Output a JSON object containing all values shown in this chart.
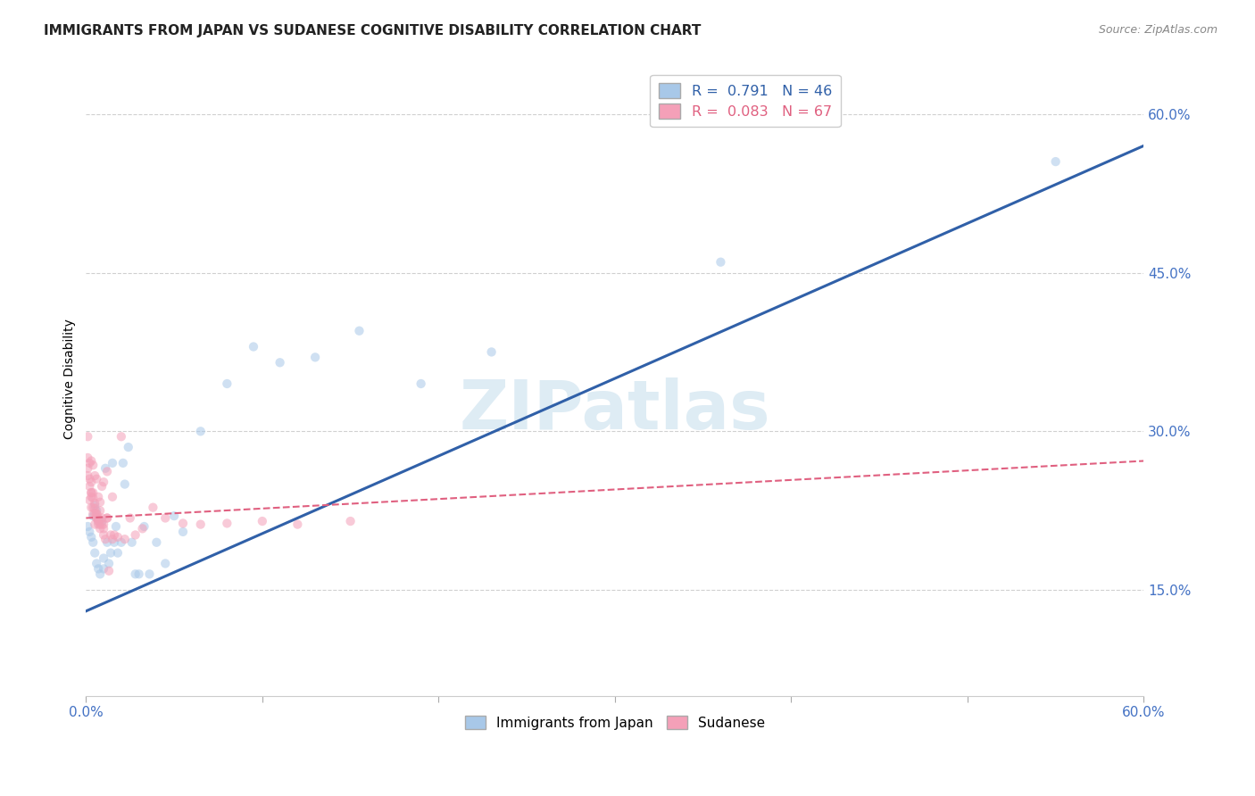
{
  "title": "IMMIGRANTS FROM JAPAN VS SUDANESE COGNITIVE DISABILITY CORRELATION CHART",
  "source": "Source: ZipAtlas.com",
  "ylabel": "Cognitive Disability",
  "xlim": [
    0.0,
    0.6
  ],
  "ylim": [
    0.05,
    0.65
  ],
  "xtick_positions": [
    0.0,
    0.6
  ],
  "xtick_labels": [
    "0.0%",
    "60.0%"
  ],
  "ytick_vals": [
    0.15,
    0.3,
    0.45,
    0.6
  ],
  "ytick_labels": [
    "15.0%",
    "30.0%",
    "45.0%",
    "60.0%"
  ],
  "watermark": "ZIPatlas",
  "color_japan": "#a8c8e8",
  "color_sudanese": "#f4a0b8",
  "color_japan_line": "#3060a8",
  "color_sudanese_line": "#e06080",
  "japan_scatter_x": [
    0.001,
    0.002,
    0.003,
    0.004,
    0.004,
    0.005,
    0.005,
    0.006,
    0.006,
    0.007,
    0.007,
    0.008,
    0.009,
    0.01,
    0.01,
    0.011,
    0.012,
    0.013,
    0.014,
    0.015,
    0.016,
    0.017,
    0.018,
    0.02,
    0.021,
    0.022,
    0.024,
    0.026,
    0.028,
    0.03,
    0.033,
    0.036,
    0.04,
    0.045,
    0.05,
    0.055,
    0.065,
    0.08,
    0.095,
    0.11,
    0.13,
    0.155,
    0.19,
    0.23,
    0.36,
    0.55
  ],
  "japan_scatter_y": [
    0.21,
    0.205,
    0.2,
    0.195,
    0.22,
    0.185,
    0.23,
    0.175,
    0.225,
    0.17,
    0.215,
    0.165,
    0.215,
    0.17,
    0.18,
    0.265,
    0.195,
    0.175,
    0.185,
    0.27,
    0.195,
    0.21,
    0.185,
    0.195,
    0.27,
    0.25,
    0.285,
    0.195,
    0.165,
    0.165,
    0.21,
    0.165,
    0.195,
    0.175,
    0.22,
    0.205,
    0.3,
    0.345,
    0.38,
    0.365,
    0.37,
    0.395,
    0.345,
    0.375,
    0.46,
    0.555
  ],
  "sudanese_scatter_x": [
    0.001,
    0.001,
    0.001,
    0.001,
    0.002,
    0.002,
    0.002,
    0.002,
    0.003,
    0.003,
    0.003,
    0.003,
    0.003,
    0.004,
    0.004,
    0.004,
    0.004,
    0.005,
    0.005,
    0.005,
    0.005,
    0.006,
    0.006,
    0.006,
    0.007,
    0.007,
    0.008,
    0.008,
    0.009,
    0.009,
    0.01,
    0.01,
    0.011,
    0.012,
    0.013,
    0.014,
    0.015,
    0.016,
    0.018,
    0.02,
    0.022,
    0.025,
    0.028,
    0.032,
    0.038,
    0.045,
    0.055,
    0.065,
    0.08,
    0.1,
    0.12,
    0.15,
    0.01,
    0.012,
    0.015,
    0.008,
    0.009,
    0.007,
    0.006,
    0.003,
    0.004,
    0.005,
    0.006,
    0.007,
    0.008,
    0.01,
    0.012
  ],
  "sudanese_scatter_y": [
    0.295,
    0.275,
    0.265,
    0.258,
    0.248,
    0.255,
    0.27,
    0.235,
    0.242,
    0.238,
    0.228,
    0.252,
    0.242,
    0.222,
    0.237,
    0.242,
    0.228,
    0.212,
    0.227,
    0.232,
    0.222,
    0.218,
    0.222,
    0.218,
    0.218,
    0.212,
    0.208,
    0.212,
    0.218,
    0.212,
    0.202,
    0.212,
    0.198,
    0.218,
    0.168,
    0.202,
    0.198,
    0.202,
    0.2,
    0.295,
    0.198,
    0.218,
    0.202,
    0.208,
    0.228,
    0.218,
    0.213,
    0.212,
    0.213,
    0.215,
    0.212,
    0.215,
    0.252,
    0.262,
    0.238,
    0.233,
    0.248,
    0.238,
    0.255,
    0.272,
    0.268,
    0.258,
    0.222,
    0.215,
    0.225,
    0.208,
    0.218
  ],
  "japan_line_x": [
    0.0,
    0.6
  ],
  "japan_line_y": [
    0.13,
    0.57
  ],
  "sudanese_line_x": [
    0.0,
    0.6
  ],
  "sudanese_line_y": [
    0.218,
    0.272
  ],
  "background_color": "#ffffff",
  "grid_color": "#d0d0d0",
  "title_fontsize": 11,
  "axis_label_fontsize": 10,
  "tick_fontsize": 11,
  "scatter_size": 55,
  "scatter_alpha": 0.55,
  "legend_label_japan": "Immigrants from Japan",
  "legend_label_sudanese": "Sudanese",
  "tick_color": "#4472c4"
}
